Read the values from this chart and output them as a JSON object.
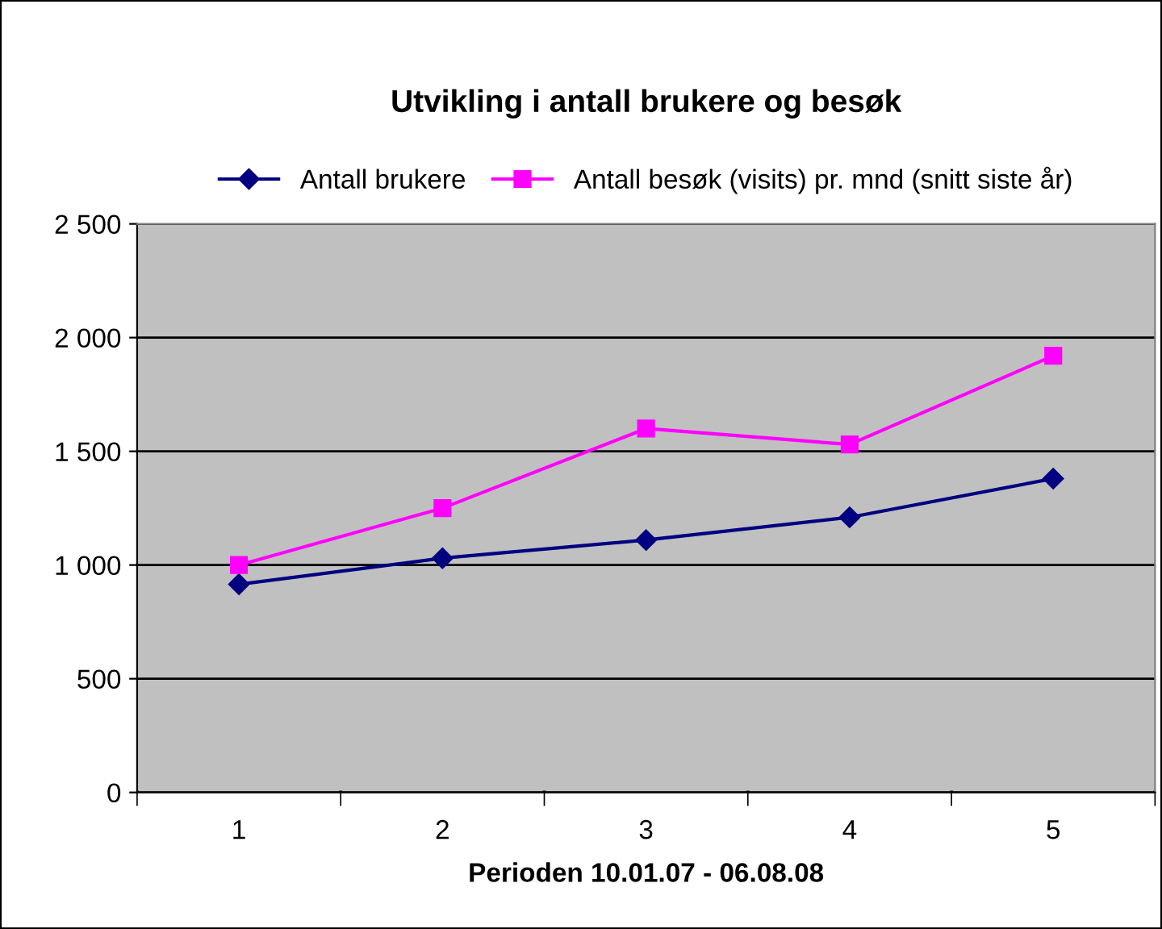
{
  "chart_data": {
    "type": "line",
    "title": "Utvikling i antall brukere og besøk",
    "xlabel": "Perioden 10.01.07 - 06.08.08",
    "categories": [
      "1",
      "2",
      "3",
      "4",
      "5"
    ],
    "series": [
      {
        "name": "Antall brukere",
        "color": "#000080",
        "marker": "diamond",
        "values": [
          915,
          1030,
          1110,
          1210,
          1380
        ]
      },
      {
        "name": "Antall besøk (visits) pr. mnd (snitt siste år)",
        "color": "#ff00ff",
        "marker": "square",
        "values": [
          1000,
          1250,
          1600,
          1530,
          1920
        ]
      }
    ],
    "ylim": [
      0,
      2500
    ],
    "yticks": [
      0,
      500,
      {
        "value": 1000,
        "label": "1 000"
      },
      {
        "value": 1500,
        "label": "1 500"
      },
      {
        "value": 2000,
        "label": "2 000"
      },
      {
        "value": 2500,
        "label": "2 500"
      }
    ],
    "grid": "y",
    "legend": "top",
    "line_style": "solid"
  }
}
